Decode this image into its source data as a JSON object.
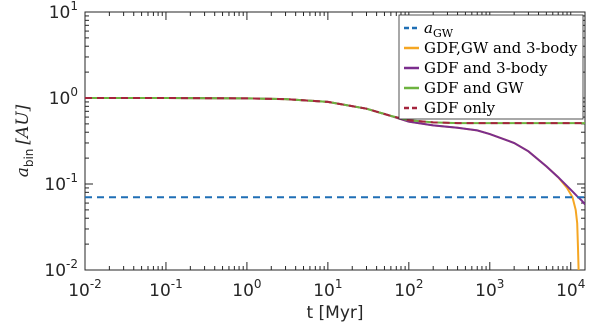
{
  "chart_data": {
    "type": "line",
    "xlabel": "t [Myr]",
    "ylabel": "a_bin [AU]",
    "x_scale": "log",
    "y_scale": "log",
    "xlim": [
      0.01,
      15000
    ],
    "ylim": [
      0.01,
      10
    ],
    "x_ticks": [
      {
        "base": "10",
        "exp": "-2",
        "value": 0.01
      },
      {
        "base": "10",
        "exp": "-1",
        "value": 0.1
      },
      {
        "base": "10",
        "exp": "0",
        "value": 1
      },
      {
        "base": "10",
        "exp": "1",
        "value": 10
      },
      {
        "base": "10",
        "exp": "2",
        "value": 100
      },
      {
        "base": "10",
        "exp": "3",
        "value": 1000
      },
      {
        "base": "10",
        "exp": "4",
        "value": 10000
      }
    ],
    "y_ticks": [
      {
        "base": "10",
        "exp": "-2",
        "value": 0.01
      },
      {
        "base": "10",
        "exp": "-1",
        "value": 0.1
      },
      {
        "base": "10",
        "exp": "0",
        "value": 1
      },
      {
        "base": "10",
        "exp": "1",
        "value": 10
      }
    ],
    "legend_position": "top-right",
    "grid": false,
    "series": [
      {
        "name": "a_GW",
        "color": "#1f6fb5",
        "style": "dashed",
        "x": [
          0.01,
          15000
        ],
        "y": [
          0.07,
          0.07
        ]
      },
      {
        "name": "GDF,GW and 3-body",
        "color": "#f5a623",
        "style": "solid",
        "x": [
          0.01,
          0.1,
          1,
          3,
          10,
          30,
          60,
          100,
          200,
          400,
          700,
          1000,
          2000,
          3000,
          5000,
          7000,
          9000,
          10500,
          11500,
          12000,
          12300,
          12500
        ],
        "y": [
          1.0,
          1.0,
          0.99,
          0.97,
          0.9,
          0.75,
          0.62,
          0.53,
          0.48,
          0.45,
          0.42,
          0.38,
          0.3,
          0.24,
          0.16,
          0.12,
          0.09,
          0.07,
          0.05,
          0.035,
          0.018,
          0.01
        ]
      },
      {
        "name": "GDF and 3-body",
        "color": "#7b2d8e",
        "style": "solid",
        "x": [
          0.01,
          0.1,
          1,
          3,
          10,
          30,
          60,
          100,
          200,
          400,
          700,
          1000,
          2000,
          3000,
          5000,
          7000,
          9000,
          10500,
          12000,
          13500,
          15000
        ],
        "y": [
          1.0,
          1.0,
          0.99,
          0.97,
          0.9,
          0.75,
          0.62,
          0.53,
          0.48,
          0.45,
          0.42,
          0.38,
          0.3,
          0.24,
          0.16,
          0.12,
          0.095,
          0.082,
          0.072,
          0.065,
          0.058
        ]
      },
      {
        "name": "GDF and GW",
        "color": "#6db33f",
        "style": "solid",
        "x": [
          0.01,
          0.1,
          1,
          3,
          10,
          30,
          60,
          100,
          200,
          400,
          1000,
          15000
        ],
        "y": [
          1.0,
          1.0,
          0.99,
          0.97,
          0.9,
          0.75,
          0.62,
          0.55,
          0.52,
          0.51,
          0.51,
          0.51
        ]
      },
      {
        "name": "GDF only",
        "color": "#a5243d",
        "style": "dashed",
        "x": [
          0.01,
          0.1,
          1,
          3,
          10,
          30,
          60,
          100,
          200,
          400,
          1000,
          15000
        ],
        "y": [
          1.0,
          1.0,
          0.99,
          0.97,
          0.9,
          0.75,
          0.62,
          0.55,
          0.52,
          0.51,
          0.51,
          0.51
        ]
      }
    ]
  }
}
